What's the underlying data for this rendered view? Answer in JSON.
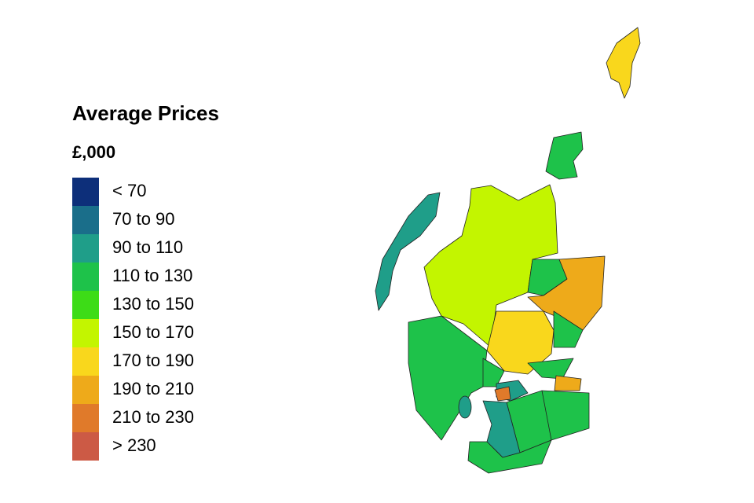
{
  "legend": {
    "title": "Average Prices",
    "subtitle": "£,000",
    "items": [
      {
        "label": "< 70",
        "color": "#0d2f7a"
      },
      {
        "label": "70 to 90",
        "color": "#1a6e8a"
      },
      {
        "label": "90 to 110",
        "color": "#1f9e89"
      },
      {
        "label": "110 to 130",
        "color": "#1ec24a"
      },
      {
        "label": "130 to 150",
        "color": "#3ddc17"
      },
      {
        "label": "150 to 170",
        "color": "#c3f500"
      },
      {
        "label": "170 to 190",
        "color": "#f9d71c"
      },
      {
        "label": "190 to 210",
        "color": "#eeaa1a"
      },
      {
        "label": "210 to 230",
        "color": "#e07a2a"
      },
      {
        "label": "> 230",
        "color": "#cc5a45"
      }
    ]
  }
}
